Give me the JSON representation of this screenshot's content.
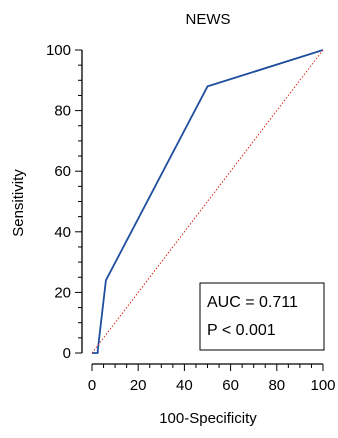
{
  "chart_data": {
    "type": "line",
    "title": "NEWS",
    "xlabel": "100-Specificity",
    "ylabel": "Sensitivity",
    "xlim": [
      0,
      100
    ],
    "ylim": [
      0,
      100
    ],
    "xticks": [
      0,
      20,
      40,
      60,
      80,
      100
    ],
    "yticks": [
      0,
      20,
      40,
      60,
      80,
      100
    ],
    "series": [
      {
        "style": "roc",
        "color": "#1f4e9e",
        "x": [
          0,
          2.5,
          2.5,
          6,
          50,
          100
        ],
        "y": [
          0,
          0,
          1,
          24,
          88,
          100
        ]
      },
      {
        "style": "reference-diagonal",
        "color": "#d9281f",
        "x": [
          0,
          100
        ],
        "y": [
          0,
          100
        ]
      }
    ],
    "annotation": {
      "auc": "AUC = 0.711",
      "p": "P < 0.001"
    },
    "grid": false
  }
}
